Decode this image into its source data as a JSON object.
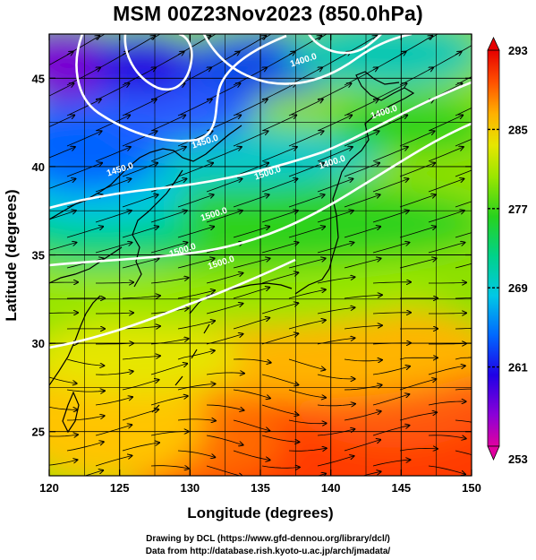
{
  "title": "MSM 00Z23Nov2023 (850.0hPa)",
  "map": {
    "xlabel": "Longitude (degrees)",
    "ylabel": "Latitude  (degrees)",
    "x_ticks": [
      "120",
      "125",
      "130",
      "135",
      "140",
      "145",
      "150"
    ],
    "y_ticks": [
      "25",
      "30",
      "35",
      "40",
      "45"
    ],
    "lon_range": [
      120,
      150
    ],
    "lat_range": [
      22.5,
      47.5
    ],
    "grid": "on",
    "contour_labels": [
      "1500.0",
      "1500.0",
      "1500.0",
      "1500.0",
      "1450.0",
      "1450.0",
      "1400.0",
      "1400.0",
      "1400.0"
    ]
  },
  "colorbar": {
    "labels": [
      "293",
      "285",
      "277",
      "269",
      "261",
      "253"
    ],
    "range": [
      253,
      293
    ],
    "colors": [
      "#e0007a",
      "#9b00c8",
      "#2a00e0",
      "#005cff",
      "#00c8e6",
      "#00d27a",
      "#2fd21e",
      "#9ae600",
      "#e6e600",
      "#ffb400",
      "#ff5a00",
      "#e60000"
    ]
  },
  "credits": {
    "line1": "Drawing by DCL (https://www.gfd-dennou.org/library/dcl/)",
    "line2": "Data from http://database.rish.kyoto-u.ac.jp/arch/jmadata/"
  }
}
